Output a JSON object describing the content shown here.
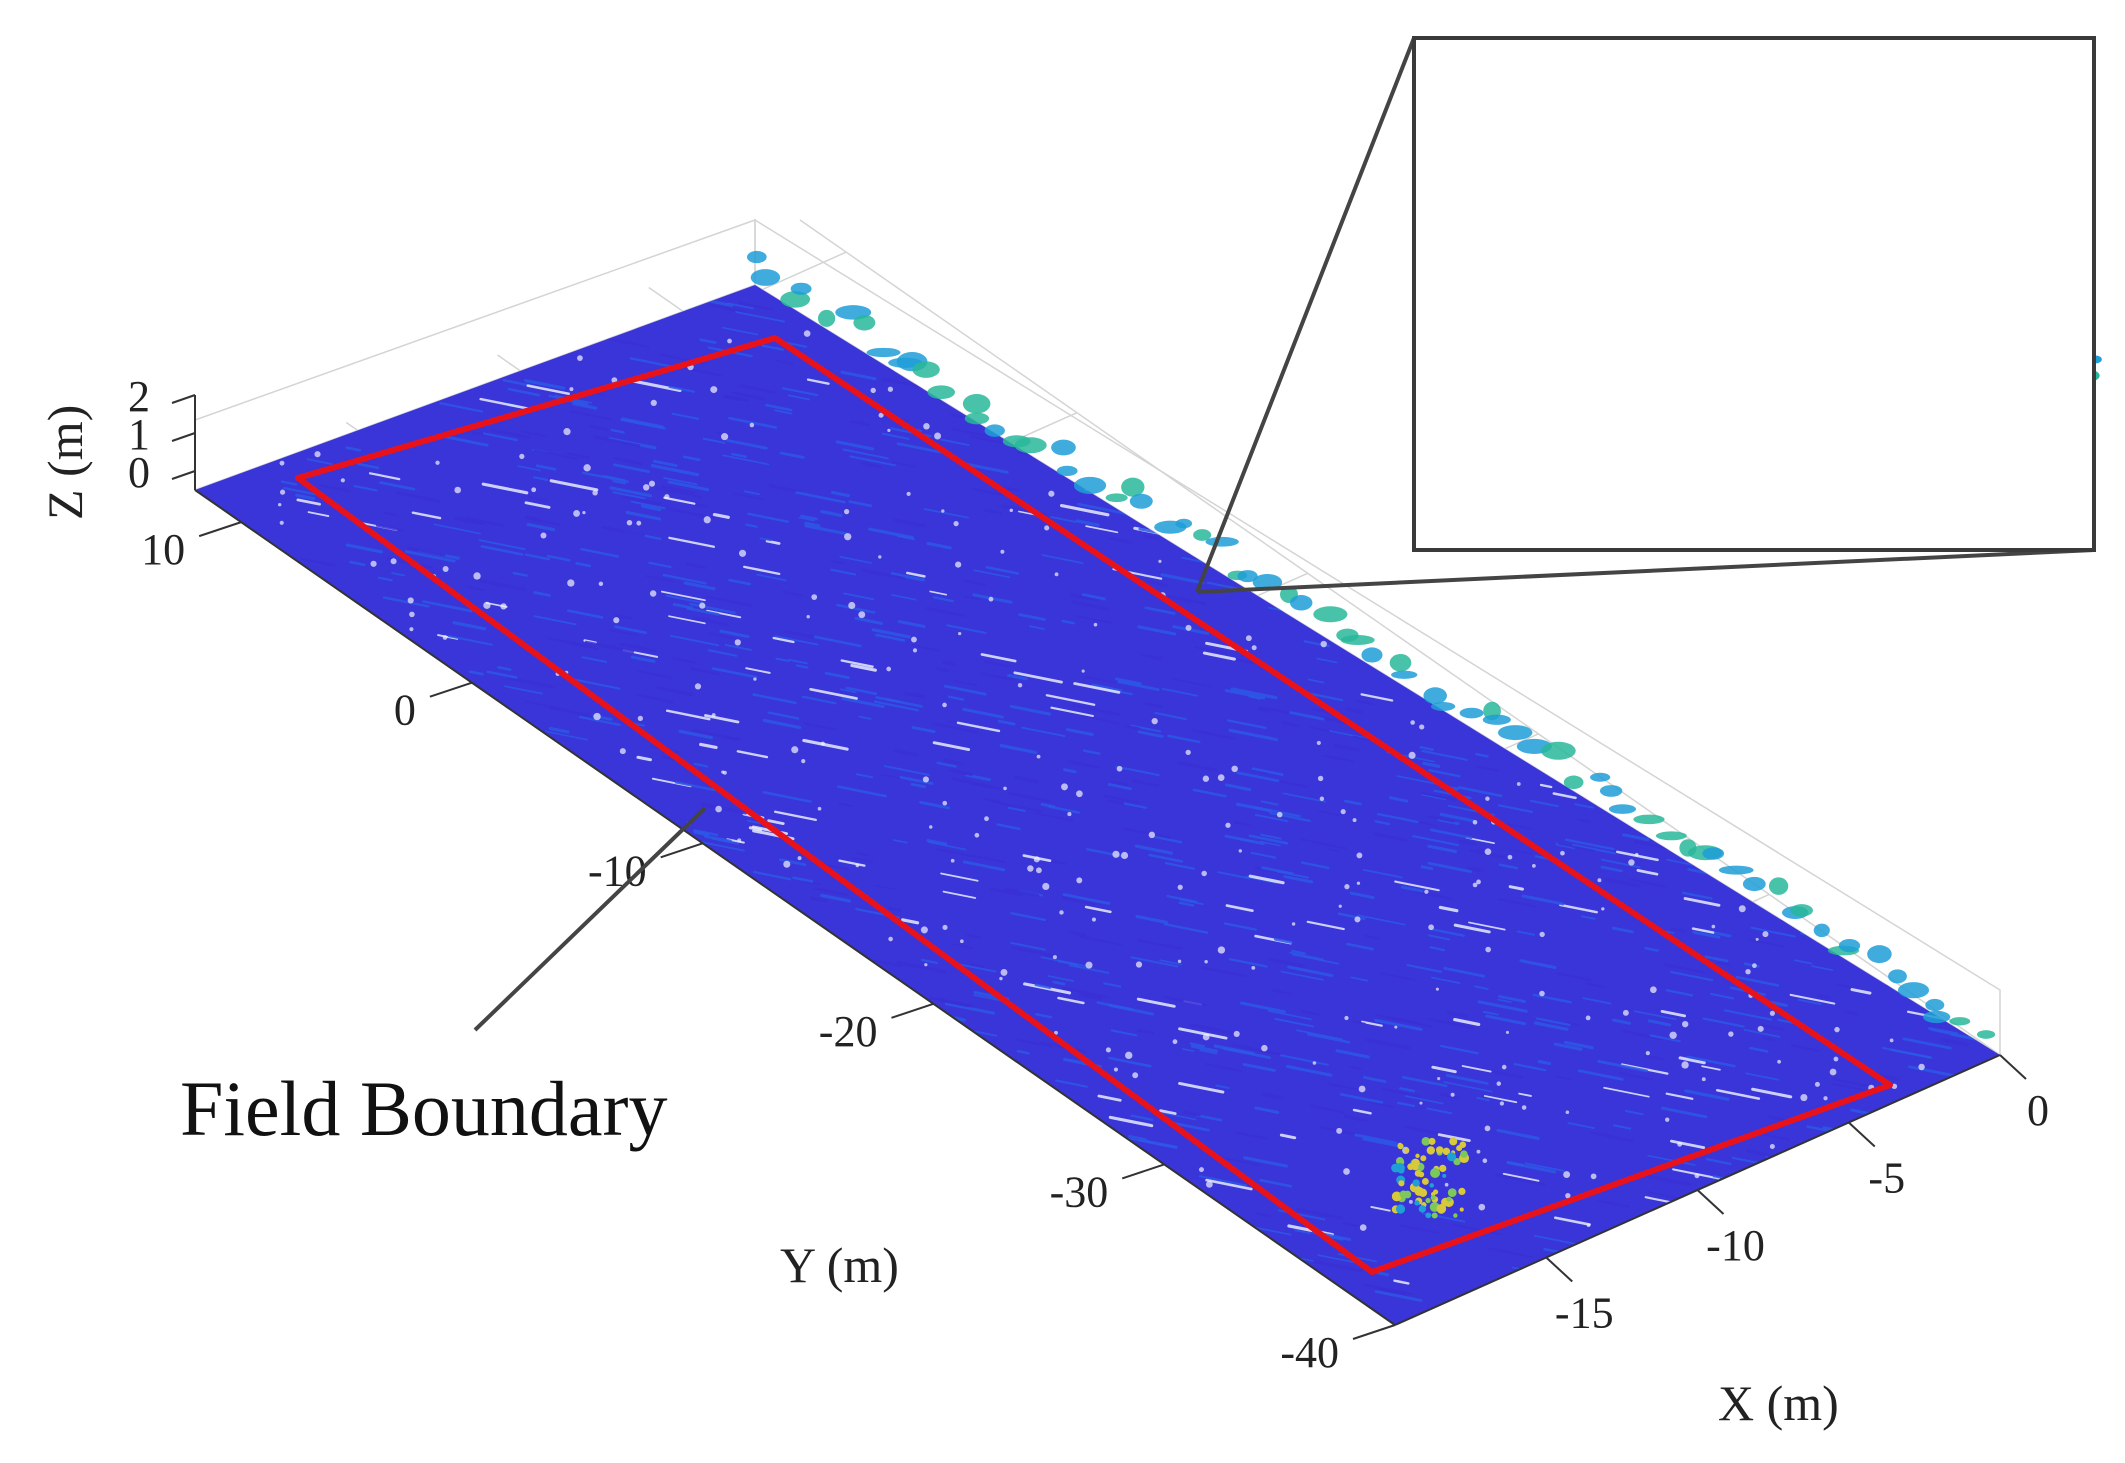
{
  "chart_data": {
    "type": "scatter",
    "title": "",
    "subtitle": "",
    "xlabel": "X (m)",
    "ylabel": "Y (m)",
    "zlabel": "Z (m)",
    "xlim": [
      -20,
      0
    ],
    "ylim": [
      -40,
      12
    ],
    "zlim": [
      -0.5,
      2
    ],
    "x_ticks": [
      0,
      -5,
      -10,
      -15
    ],
    "y_ticks": [
      10,
      0,
      -10,
      -20,
      -30,
      -40
    ],
    "z_ticks": [
      2,
      1,
      0
    ],
    "grid": true,
    "colormap": [
      "#3a2fd6",
      "#2d58e6",
      "#1f9ed8",
      "#28b79a",
      "#7cc85a",
      "#d8c93a"
    ],
    "boundary_color": "#e8131a",
    "annotations": [
      {
        "text": "Field Boundary"
      }
    ],
    "inset": {
      "description_visible": false
    }
  }
}
